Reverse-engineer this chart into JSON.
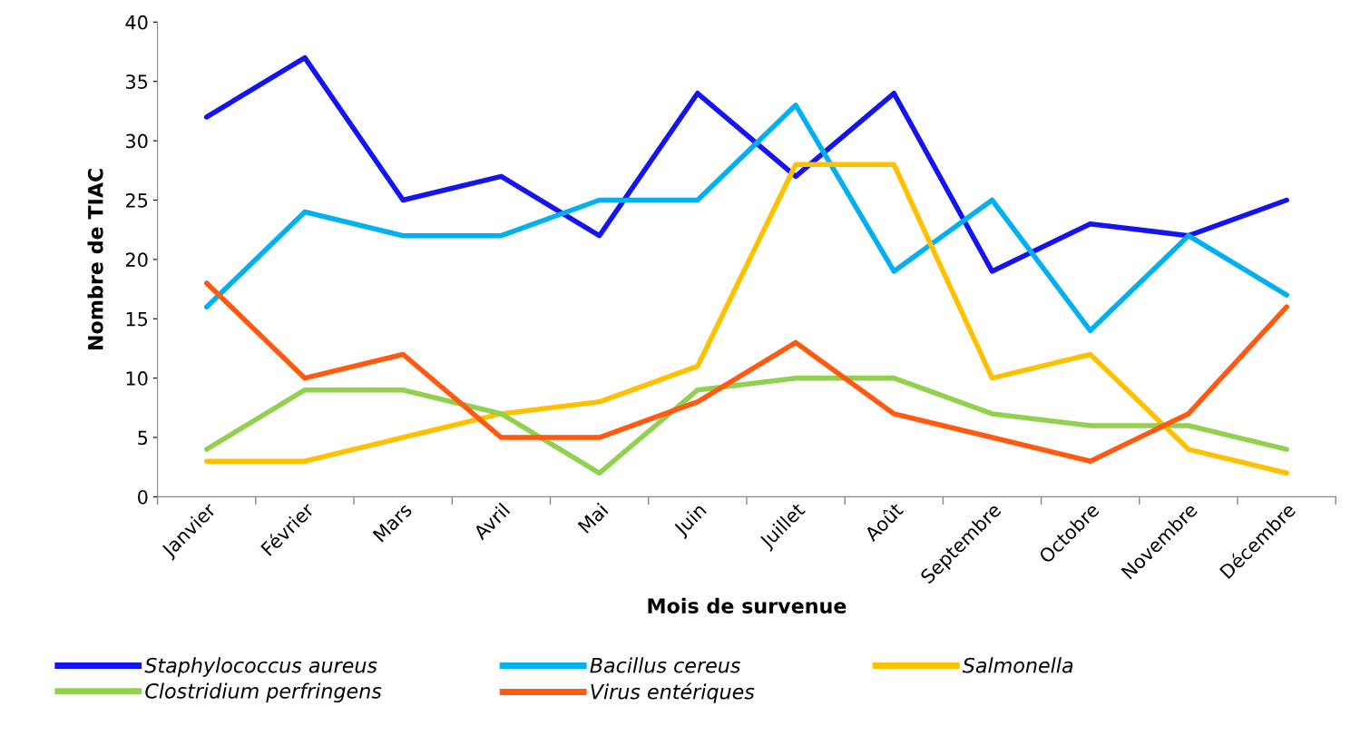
{
  "chart_data": {
    "type": "line",
    "xlabel": "Mois de survenue",
    "ylabel": "Nombre de TIAC",
    "categories": [
      "Janvier",
      "Février",
      "Mars",
      "Avril",
      "Mai",
      "Juin",
      "Juillet",
      "Août",
      "Septembre",
      "Octobre",
      "Novembre",
      "Décembre"
    ],
    "series": [
      {
        "name": "Staphylococcus aureus",
        "color": "#1414f0",
        "values": [
          32,
          37,
          25,
          27,
          22,
          34,
          27,
          34,
          19,
          23,
          22,
          25
        ]
      },
      {
        "name": "Bacillus cereus",
        "color": "#00b0f0",
        "values": [
          16,
          24,
          22,
          22,
          25,
          25,
          33,
          19,
          25,
          14,
          22,
          17
        ]
      },
      {
        "name": "Salmonella",
        "color": "#ffc000",
        "values": [
          3,
          3,
          5,
          7,
          8,
          11,
          28,
          28,
          10,
          12,
          4,
          2
        ]
      },
      {
        "name": "Clostridium perfringens",
        "color": "#92d050",
        "values": [
          4,
          9,
          9,
          7,
          2,
          9,
          10,
          10,
          7,
          6,
          6,
          4
        ]
      },
      {
        "name": "Virus entériques",
        "color": "#ff5a0f",
        "values": [
          18,
          10,
          12,
          5,
          5,
          8,
          13,
          7,
          5,
          3,
          7,
          16
        ]
      }
    ],
    "ylim": [
      0,
      40
    ],
    "yticks": [
      0,
      5,
      10,
      15,
      20,
      25,
      30,
      35,
      40
    ],
    "grid": false,
    "legend": "bottom",
    "marker": "none",
    "line_style": "solid"
  }
}
